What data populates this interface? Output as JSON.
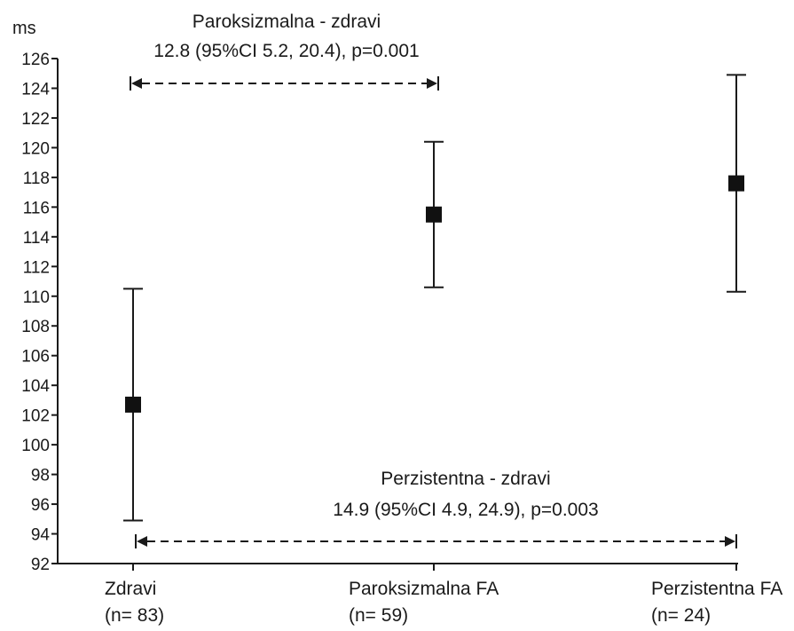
{
  "chart_data": {
    "type": "scatter",
    "ylabel": "ms",
    "ylim": [
      92,
      126
    ],
    "ytick_step": 2,
    "grid": false,
    "categories": [
      {
        "label": "Zdravi",
        "n_label": "(n= 83)"
      },
      {
        "label": "Paroksizmalna FA",
        "n_label": "(n= 59)"
      },
      {
        "label": "Perzistentna FA",
        "n_label": "(n= 24)"
      }
    ],
    "series": [
      {
        "values": [
          102.7,
          115.5,
          117.6
        ],
        "lower": [
          94.9,
          110.6,
          110.3
        ],
        "upper": [
          110.5,
          120.4,
          124.9
        ]
      }
    ],
    "annotations": [
      {
        "from": 0,
        "to": 1,
        "title": "Paroksizmalna - zdravi",
        "text": "12.8 (95%CI 5.2, 20.4), p=0.001",
        "position": "top"
      },
      {
        "from": 0,
        "to": 2,
        "title": "Perzistentna - zdravi",
        "text": "14.9 (95%CI 4.9, 24.9), p=0.003",
        "position": "bottom"
      }
    ]
  }
}
